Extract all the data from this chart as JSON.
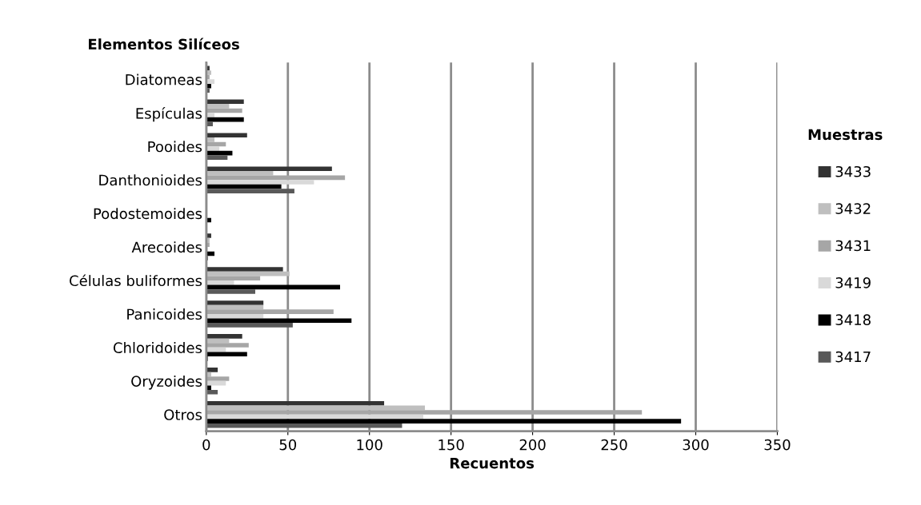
{
  "chart_data": {
    "type": "bar",
    "orientation": "horizontal",
    "xlabel": "Recuentos",
    "ylabel": "Elementos Silíceos",
    "legend_title": "Muestras",
    "categories": [
      "Diatomeas",
      "Espículas",
      "Pooides",
      "Danthonioides",
      "Podostemoides",
      "Arecoides",
      "Células buliformes",
      "Panicoides",
      "Chloridoides",
      "Oryzoides",
      "Otros"
    ],
    "series": [
      {
        "name": "3433",
        "color": "#333333",
        "values": [
          2,
          23,
          25,
          77,
          0,
          3,
          47,
          35,
          22,
          7,
          109
        ]
      },
      {
        "name": "3432",
        "color": "#bfbfbf",
        "values": [
          3,
          14,
          5,
          41,
          0,
          2,
          51,
          35,
          14,
          3,
          134
        ]
      },
      {
        "name": "3431",
        "color": "#a6a6a6",
        "values": [
          2,
          22,
          12,
          85,
          0,
          2,
          33,
          78,
          26,
          14,
          267
        ]
      },
      {
        "name": "3419",
        "color": "#d9d9d9",
        "values": [
          5,
          5,
          8,
          66,
          0,
          1,
          17,
          35,
          12,
          12,
          133
        ]
      },
      {
        "name": "3418",
        "color": "#000000",
        "values": [
          3,
          23,
          16,
          46,
          3,
          5,
          82,
          89,
          25,
          3,
          291
        ]
      },
      {
        "name": "3417",
        "color": "#595959",
        "values": [
          2,
          4,
          13,
          54,
          0,
          1,
          30,
          53,
          1,
          7,
          120
        ]
      }
    ],
    "xlim": [
      0,
      350
    ],
    "xticks": [
      0,
      50,
      100,
      150,
      200,
      250,
      300,
      350
    ],
    "grid": "x",
    "legend": "right"
  }
}
